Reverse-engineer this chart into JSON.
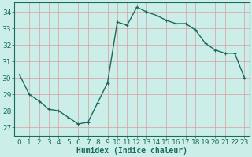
{
  "x": [
    0,
    1,
    2,
    3,
    4,
    5,
    6,
    7,
    8,
    9,
    10,
    11,
    12,
    13,
    14,
    15,
    16,
    17,
    18,
    19,
    20,
    21,
    22,
    23
  ],
  "y": [
    30.2,
    29.0,
    28.6,
    28.1,
    28.0,
    27.6,
    27.2,
    27.3,
    28.5,
    29.7,
    33.4,
    33.2,
    34.3,
    34.0,
    33.8,
    33.5,
    33.3,
    33.3,
    32.9,
    32.1,
    31.7,
    31.5,
    31.5,
    30.0
  ],
  "line_color": "#1a6b5a",
  "marker": "+",
  "marker_size": 3,
  "background_color": "#cceee8",
  "grid_color": "#d8a0a0",
  "xlabel": "Humidex (Indice chaleur)",
  "ylim": [
    26.5,
    34.6
  ],
  "xlim": [
    -0.5,
    23.5
  ],
  "yticks": [
    27,
    28,
    29,
    30,
    31,
    32,
    33,
    34
  ],
  "xticks": [
    0,
    1,
    2,
    3,
    4,
    5,
    6,
    7,
    8,
    9,
    10,
    11,
    12,
    13,
    14,
    15,
    16,
    17,
    18,
    19,
    20,
    21,
    22,
    23
  ],
  "tick_color": "#1a6b5a",
  "xlabel_color": "#1a6b5a",
  "axis_color": "#1a6b5a",
  "xlabel_fontsize": 7,
  "tick_fontsize": 6.5,
  "linewidth": 1.0
}
